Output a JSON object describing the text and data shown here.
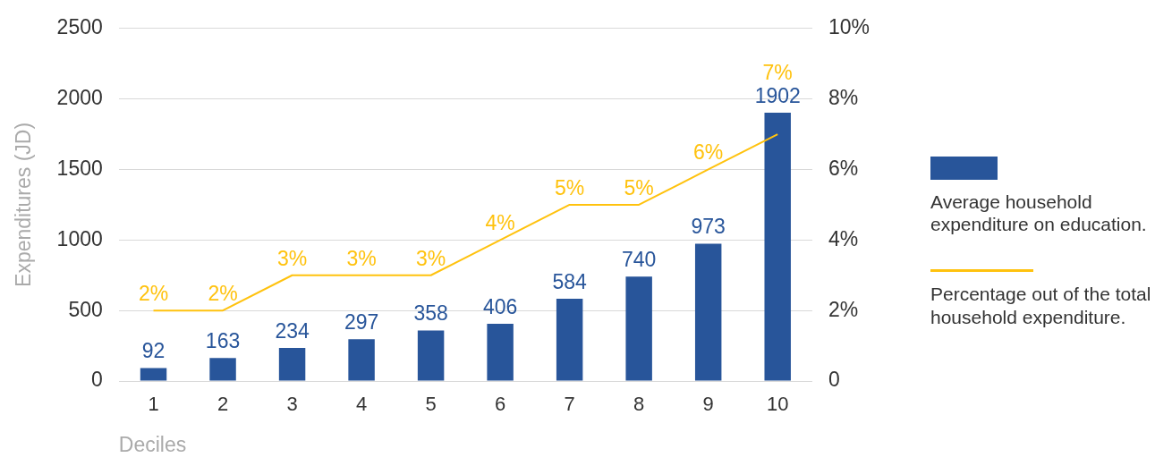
{
  "chart_data": {
    "type": "bar",
    "xlabel": "Deciles",
    "ylabel": "Expenditures (JD)",
    "categories": [
      "1",
      "2",
      "3",
      "4",
      "5",
      "6",
      "7",
      "8",
      "9",
      "10"
    ],
    "series": [
      {
        "name": "Average household expenditure on education.",
        "color": "#28559a",
        "values": [
          92,
          163,
          234,
          297,
          358,
          406,
          584,
          740,
          973,
          1902
        ],
        "value_labels": [
          "92",
          "163",
          "234",
          "297",
          "358",
          "406",
          "584",
          "740",
          "973",
          "1902"
        ]
      },
      {
        "name": "Percentage out of the total household expenditure.",
        "type": "line",
        "axis": "y2",
        "color": "#ffc20e",
        "values": [
          2,
          2,
          3,
          3,
          3,
          4,
          5,
          5,
          6,
          7
        ],
        "value_labels": [
          "2%",
          "2%",
          "3%",
          "3%",
          "3%",
          "4%",
          "5%",
          "5%",
          "6%",
          "7%"
        ]
      }
    ],
    "ylim": [
      0,
      2500
    ],
    "yticks": [
      0,
      500,
      1000,
      1500,
      2000,
      2500
    ],
    "y2lim": [
      0,
      10
    ],
    "y2ticks": [
      0,
      {
        "value": 2,
        "label": "2%"
      },
      {
        "value": 4,
        "label": "4%"
      },
      {
        "value": 6,
        "label": "6%"
      },
      {
        "value": 8,
        "label": "8%"
      },
      {
        "value": 10,
        "label": "10%"
      }
    ],
    "grid": "y",
    "legend": "right",
    "marker": "none",
    "line_style": "solid"
  }
}
